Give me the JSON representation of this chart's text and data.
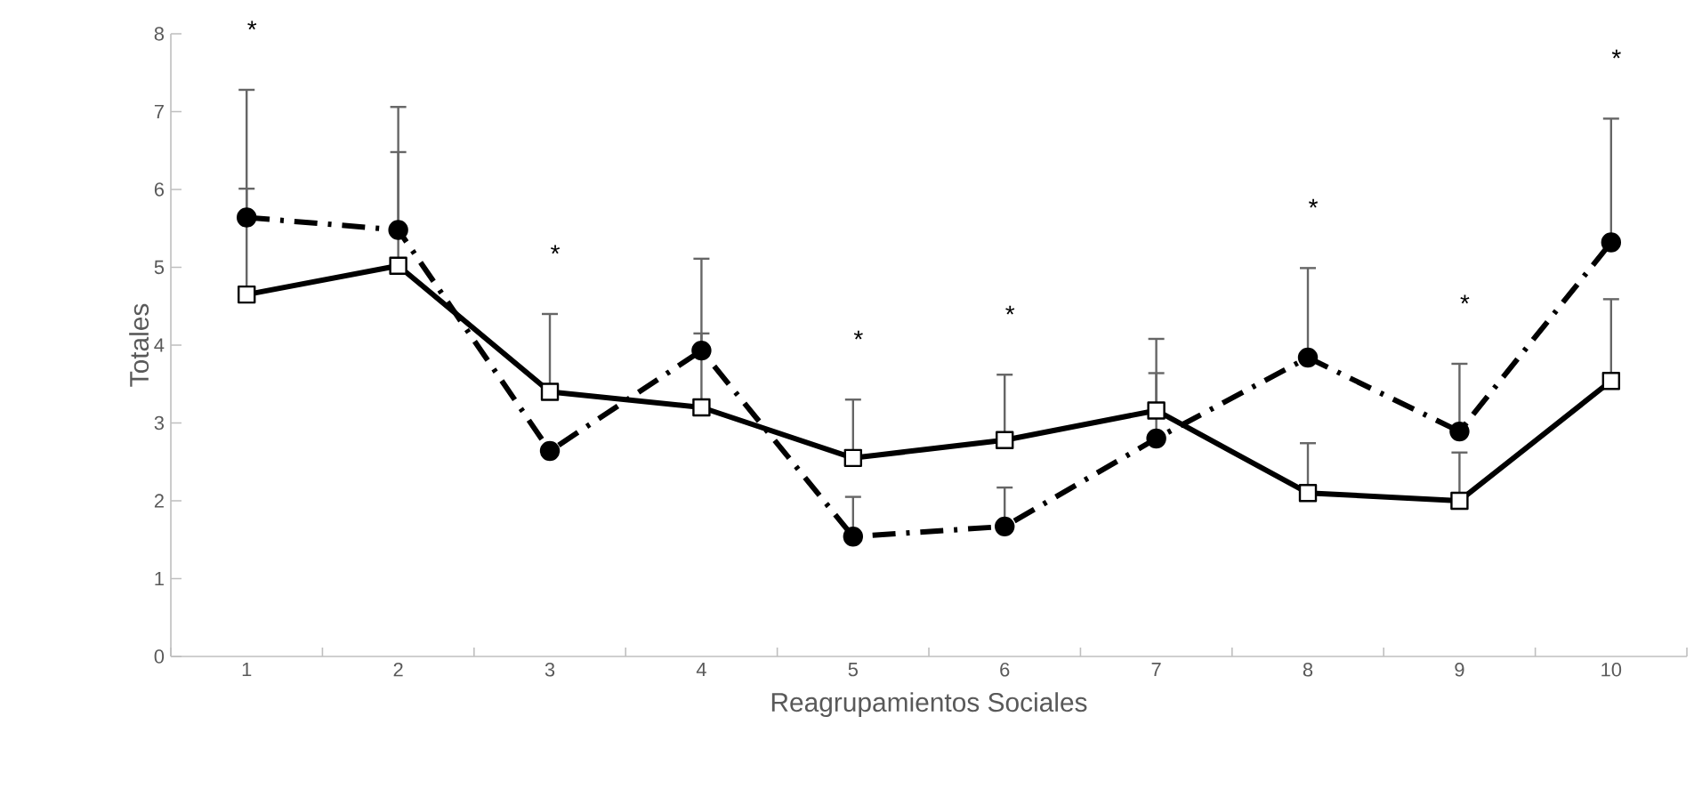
{
  "chart_data": {
    "type": "line",
    "xlabel": "Reagrupamientos Sociales",
    "ylabel": "Totales",
    "categories": [
      "1",
      "2",
      "3",
      "4",
      "5",
      "6",
      "7",
      "8",
      "9",
      "10"
    ],
    "ylim": [
      0,
      8
    ],
    "yticks": [
      0,
      1,
      2,
      3,
      4,
      5,
      6,
      7,
      8
    ],
    "grid": false,
    "series": [
      {
        "color": "#000000",
        "marker": "square",
        "line_style": "solid",
        "values": [
          4.65,
          5.02,
          3.4,
          3.2,
          2.55,
          2.78,
          3.16,
          2.1,
          2.0,
          3.54
        ],
        "errors": [
          [
            4.65,
            6.01
          ],
          [
            5.02,
            6.48
          ],
          [
            3.4,
            4.4
          ],
          [
            3.2,
            4.15
          ],
          [
            2.55,
            3.3
          ],
          [
            2.78,
            3.62
          ],
          [
            3.16,
            4.08
          ],
          [
            2.1,
            2.74
          ],
          [
            2.0,
            2.62
          ],
          [
            3.54,
            4.59
          ]
        ]
      },
      {
        "color": "#000000",
        "marker": "circle",
        "line_style": "dashdot",
        "values": [
          5.64,
          5.48,
          2.64,
          3.93,
          1.54,
          1.67,
          2.8,
          3.84,
          2.89,
          5.32
        ],
        "errors": [
          [
            5.64,
            7.28
          ],
          [
            5.48,
            7.06
          ],
          null,
          [
            3.93,
            5.11
          ],
          [
            1.54,
            2.05
          ],
          [
            1.67,
            2.17
          ],
          [
            2.8,
            3.64
          ],
          [
            3.84,
            4.99
          ],
          [
            2.89,
            3.76
          ],
          [
            5.32,
            6.91
          ]
        ]
      }
    ],
    "annotations": [
      "*",
      "*",
      "*",
      "*",
      "*",
      "*",
      "*"
    ]
  }
}
